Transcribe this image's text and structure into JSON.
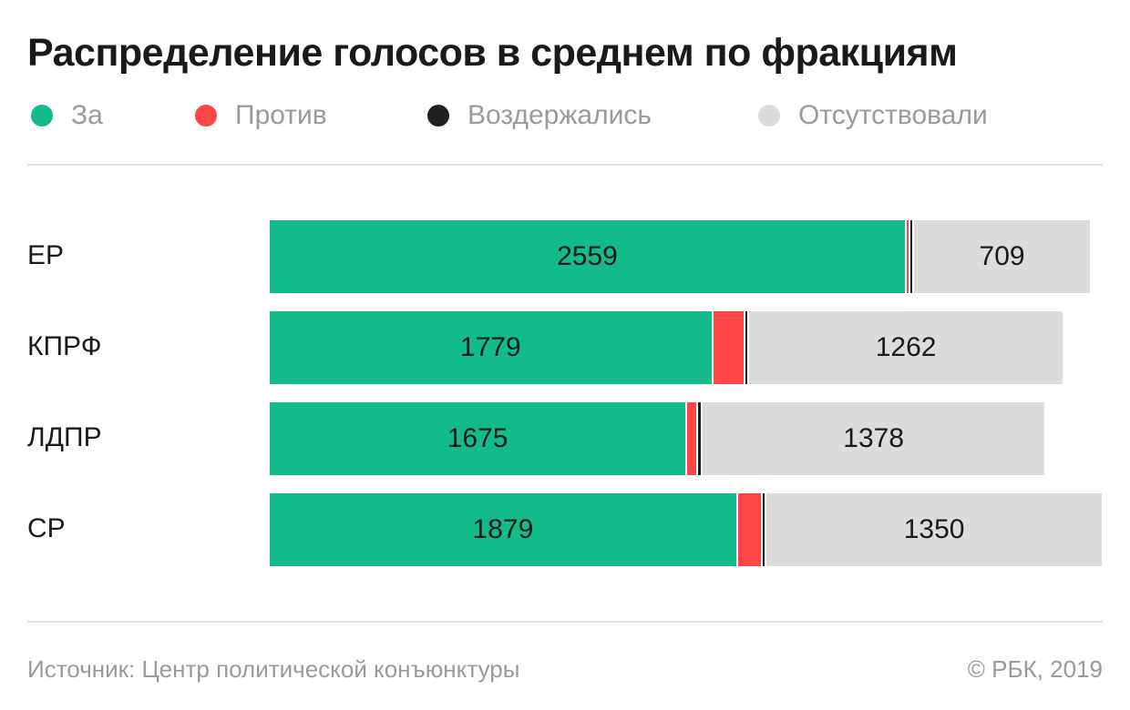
{
  "chart_data": {
    "type": "bar",
    "orientation": "horizontal",
    "stacked": true,
    "title": "Распределение голосов в среднем по фракциям",
    "categories": [
      "ЕР",
      "КПРФ",
      "ЛДПР",
      "СР"
    ],
    "series": [
      {
        "name": "За",
        "color": "#14bb8a",
        "values": [
          2559,
          1779,
          1675,
          1879
        ],
        "labeled": true
      },
      {
        "name": "Против",
        "color": "#ff4545",
        "values": [
          7,
          121,
          37,
          92
        ],
        "labeled": false
      },
      {
        "name": "Воздержались",
        "color": "#1f1f1f",
        "values": [
          7,
          10,
          10,
          9
        ],
        "labeled": false
      },
      {
        "name": "Отсутствовали",
        "color": "#dcdcdc",
        "values": [
          709,
          1262,
          1378,
          1350
        ],
        "labeled": true
      }
    ],
    "legend_position": "top",
    "grid": false
  },
  "footer": {
    "source": "Источник: Центр политической конъюнктуры",
    "copyright": "© РБК, 2019"
  }
}
